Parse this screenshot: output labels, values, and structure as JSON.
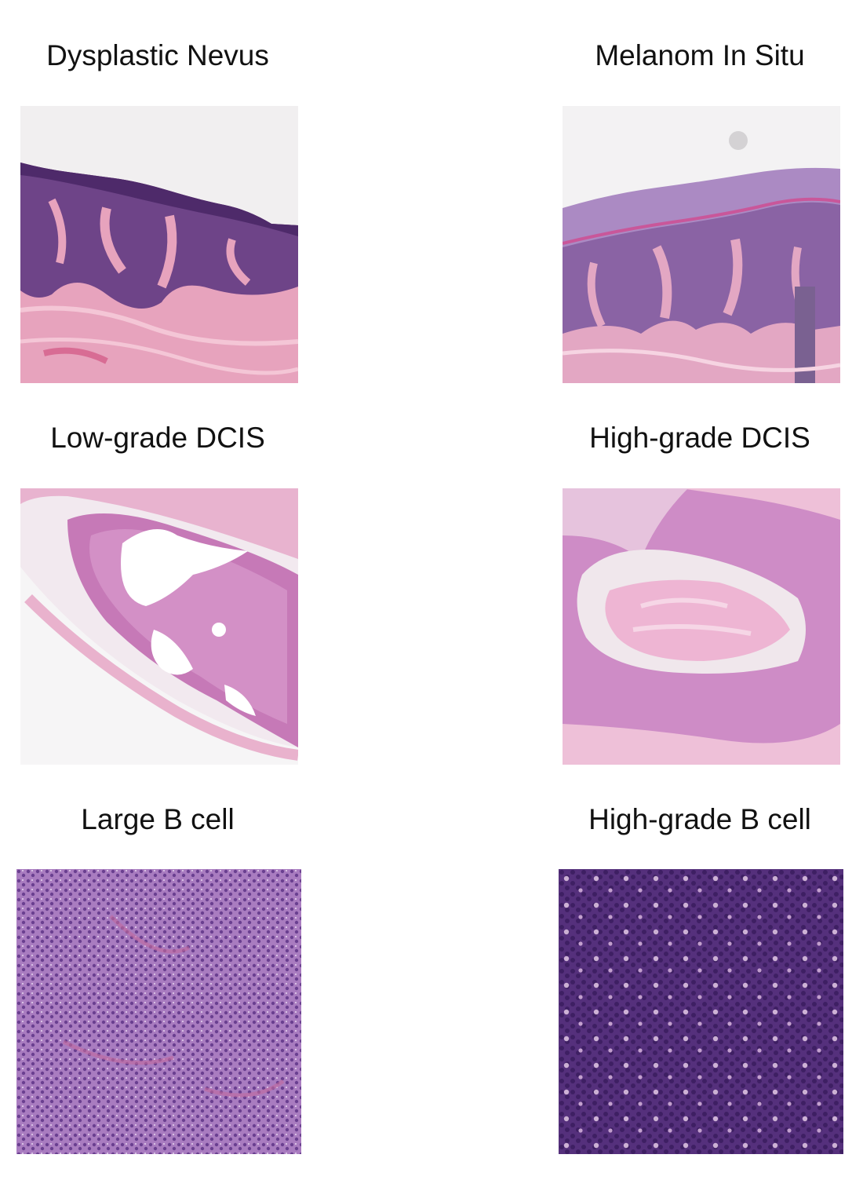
{
  "panels": [
    {
      "title": "Dysplastic Nevus"
    },
    {
      "title": "Melanom In Situ"
    },
    {
      "title": "Low-grade DCIS"
    },
    {
      "title": "High-grade DCIS"
    },
    {
      "title": "Large B cell"
    },
    {
      "title": "High-grade B cell"
    }
  ],
  "colors": {
    "background": "#ffffff",
    "stroma_pink": "#e89bb8",
    "epidermis_purple": "#6b3f86",
    "membrane_pink": "#c9579a",
    "lymphoid_lavender": "#9b6cb4",
    "lymphoid_dark": "#4f2a76"
  }
}
